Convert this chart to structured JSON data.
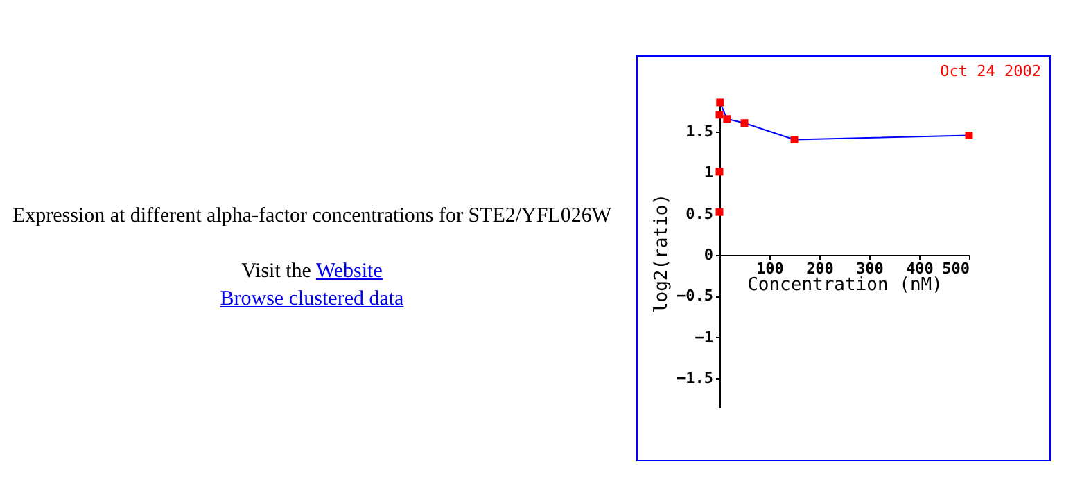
{
  "chart_data": {
    "type": "line",
    "title": "Expression at different alpha-factor concentrations for STE2/YFL026W",
    "annotations": [
      "Visit the Website",
      "Browse clustered data",
      "Oct 24 2002"
    ],
    "xlabel": "Concentration (nM)",
    "ylabel": "log2(ratio)",
    "series": [
      {
        "type": "line",
        "color": "#0000ff",
        "x": [
          1,
          15,
          50,
          150,
          500
        ],
        "values": [
          1.85,
          1.65,
          1.6,
          1.4,
          1.45
        ],
        "marker": "none"
      },
      {
        "type": "scatter",
        "color": "#ff0000",
        "x": [
          0,
          0,
          0,
          1,
          15,
          50,
          150,
          500
        ],
        "values": [
          0.52,
          1.01,
          1.7,
          1.85,
          1.65,
          1.6,
          1.4,
          1.45
        ],
        "marker": "square"
      }
    ],
    "xlim": [
      0,
      500
    ],
    "xticks": [
      100,
      200,
      300,
      400,
      500
    ],
    "ylim": [
      -1.85,
      1.9
    ],
    "yticks": [
      -1.5,
      -1,
      -0.5,
      0,
      0.5,
      1,
      1.5
    ],
    "grid": false
  }
}
